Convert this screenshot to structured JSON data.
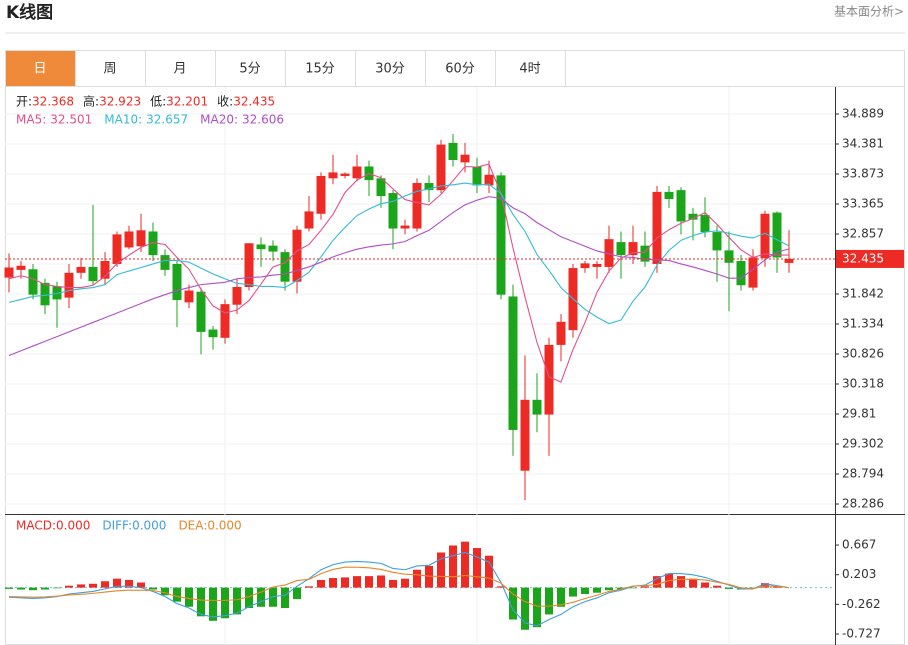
{
  "header": {
    "title": "K线图",
    "link": "基本面分析>"
  },
  "tabs": [
    "日",
    "周",
    "月",
    "5分",
    "15分",
    "30分",
    "60分",
    "4时"
  ],
  "active_tab": 0,
  "chart_data": [
    {
      "type": "candlestick",
      "ylim": [
        28.117,
        35.329
      ],
      "yticks": [
        34.889,
        34.381,
        33.873,
        33.365,
        32.857,
        32.349,
        31.842,
        31.334,
        30.826,
        30.318,
        29.81,
        29.302,
        28.794,
        28.286
      ],
      "grid": true,
      "up_color": "#ee2a24",
      "down_color": "#1ba51b",
      "last_price_color": "#ee2a24",
      "ohlc_labels": [
        "开:",
        "高:",
        "低:",
        "收:"
      ],
      "open": [
        32.12,
        32.25,
        32.26,
        32.03,
        31.97,
        31.78,
        32.2,
        32.3,
        32.1,
        32.35,
        32.63,
        32.65,
        32.9,
        32.5,
        32.35,
        31.7,
        31.88,
        31.24,
        31.1,
        31.66,
        31.96,
        32.68,
        32.66,
        32.55,
        32.05,
        32.95,
        33.2,
        33.8,
        33.84,
        33.8,
        34.0,
        33.8,
        33.55,
        32.95,
        32.95,
        33.72,
        33.6,
        34.4,
        34.07,
        34.0,
        33.68,
        33.85,
        31.8,
        28.85,
        30.05,
        29.8,
        30.98,
        31.23,
        32.28,
        32.3,
        32.3,
        32.72,
        32.5,
        32.66,
        32.35,
        33.57,
        33.6,
        33.2,
        33.18,
        32.89,
        32.58,
        32.4,
        31.95,
        32.45,
        33.22,
        32.368
      ],
      "high": [
        32.53,
        32.4,
        32.35,
        32.1,
        32.05,
        32.35,
        32.45,
        33.35,
        32.55,
        32.9,
        33.0,
        33.2,
        33.05,
        32.6,
        32.4,
        32.0,
        31.95,
        31.3,
        31.75,
        32.1,
        32.7,
        32.8,
        32.75,
        32.6,
        33.0,
        33.5,
        33.9,
        34.2,
        33.9,
        34.2,
        34.1,
        33.85,
        33.6,
        33.1,
        33.8,
        33.85,
        34.45,
        34.55,
        34.4,
        34.15,
        34.1,
        33.9,
        32.0,
        30.8,
        30.5,
        31.1,
        31.5,
        32.35,
        32.4,
        32.4,
        33.0,
        32.9,
        33.0,
        32.9,
        33.67,
        33.67,
        33.65,
        33.3,
        33.48,
        33.0,
        32.9,
        32.5,
        32.6,
        33.25,
        33.24,
        32.923
      ],
      "low": [
        31.87,
        32.1,
        31.75,
        31.5,
        31.27,
        31.6,
        32.1,
        32.0,
        32.0,
        32.3,
        32.6,
        32.55,
        32.4,
        32.15,
        31.28,
        31.6,
        30.82,
        30.9,
        31.0,
        31.5,
        31.9,
        32.3,
        32.4,
        31.9,
        31.85,
        32.9,
        33.1,
        33.7,
        33.8,
        33.75,
        33.5,
        33.3,
        32.6,
        32.85,
        32.9,
        33.4,
        33.55,
        34.0,
        33.9,
        33.55,
        33.55,
        31.75,
        29.1,
        28.35,
        29.5,
        29.1,
        30.7,
        31.1,
        32.2,
        32.1,
        32.2,
        32.1,
        32.35,
        32.3,
        32.2,
        33.3,
        32.85,
        32.75,
        32.8,
        32.05,
        31.55,
        31.9,
        31.9,
        32.3,
        32.2,
        32.201
      ],
      "close": [
        32.29,
        32.32,
        31.83,
        31.65,
        31.75,
        32.2,
        32.3,
        32.06,
        32.4,
        32.85,
        32.9,
        32.92,
        32.5,
        32.25,
        31.74,
        31.9,
        31.2,
        31.11,
        31.67,
        31.96,
        32.7,
        32.6,
        32.56,
        32.05,
        32.93,
        33.24,
        33.84,
        33.9,
        33.88,
        34.0,
        33.77,
        33.5,
        32.95,
        33.0,
        33.72,
        33.6,
        34.37,
        34.11,
        34.2,
        33.68,
        33.86,
        31.83,
        29.54,
        30.05,
        29.8,
        30.98,
        31.37,
        32.28,
        32.36,
        32.35,
        32.77,
        32.5,
        32.72,
        32.39,
        33.57,
        33.45,
        33.07,
        33.1,
        32.89,
        32.58,
        32.37,
        31.99,
        32.46,
        33.2,
        32.46,
        32.435
      ],
      "series": [
        {
          "name": "MA5:",
          "color": "#e4508a",
          "values": [
            32.1,
            32.15,
            32.1,
            32.0,
            31.97,
            31.95,
            31.95,
            31.99,
            32.14,
            32.36,
            32.5,
            32.63,
            32.71,
            32.68,
            32.46,
            32.26,
            31.92,
            31.64,
            31.52,
            31.57,
            31.73,
            32.01,
            32.3,
            32.37,
            32.57,
            32.68,
            32.92,
            33.19,
            33.56,
            33.77,
            33.88,
            33.81,
            33.62,
            33.44,
            33.39,
            33.35,
            33.53,
            33.76,
            34.0,
            33.99,
            34.04,
            33.54,
            32.62,
            31.79,
            31.02,
            30.44,
            30.35,
            30.9,
            31.36,
            31.87,
            32.23,
            32.45,
            32.54,
            32.55,
            32.79,
            32.93,
            33.04,
            33.12,
            33.22,
            33.02,
            32.8,
            32.59,
            32.46,
            32.52,
            32.5,
            32.501
          ]
        },
        {
          "name": "MA10:",
          "color": "#34bcd8",
          "values": [
            31.7,
            31.75,
            31.8,
            31.82,
            31.85,
            31.9,
            31.93,
            31.95,
            32.0,
            32.17,
            32.23,
            32.29,
            32.35,
            32.41,
            32.41,
            32.38,
            32.28,
            32.18,
            32.1,
            32.02,
            32.0,
            31.97,
            31.97,
            31.95,
            32.07,
            32.21,
            32.47,
            32.75,
            32.97,
            33.17,
            33.28,
            33.37,
            33.41,
            33.5,
            33.58,
            33.62,
            33.67,
            33.69,
            33.72,
            33.69,
            33.7,
            33.54,
            33.19,
            32.9,
            32.51,
            32.24,
            31.95,
            31.76,
            31.58,
            31.45,
            31.34,
            31.4,
            31.72,
            31.96,
            32.33,
            32.58,
            32.75,
            32.83,
            32.89,
            32.91,
            32.87,
            32.82,
            32.79,
            32.87,
            32.76,
            32.657
          ]
        },
        {
          "name": "MA20:",
          "color": "#b14ec6",
          "values": [
            30.8,
            30.88,
            30.96,
            31.04,
            31.12,
            31.2,
            31.28,
            31.36,
            31.44,
            31.52,
            31.6,
            31.68,
            31.76,
            31.83,
            31.9,
            31.95,
            32.0,
            32.02,
            32.04,
            32.1,
            32.12,
            32.13,
            32.16,
            32.18,
            32.24,
            32.3,
            32.38,
            32.47,
            32.54,
            32.6,
            32.64,
            32.67,
            32.69,
            32.73,
            32.83,
            32.92,
            33.07,
            33.22,
            33.35,
            33.43,
            33.49,
            33.46,
            33.3,
            33.2,
            33.05,
            32.93,
            32.81,
            32.73,
            32.65,
            32.57,
            32.52,
            32.47,
            32.46,
            32.43,
            32.42,
            32.41,
            32.35,
            32.3,
            32.24,
            32.18,
            32.11,
            32.11,
            32.26,
            32.42,
            32.55,
            32.606
          ]
        }
      ]
    },
    {
      "type": "macd",
      "ylim": [
        -0.899,
        1.122
      ],
      "yticks": [
        0.667,
        0.203,
        -0.262,
        -0.727
      ],
      "up_color": "#ee2a24",
      "down_color": "#1ba51b",
      "bars": {
        "name": "MACD:",
        "color": "#ee2a24",
        "current_label": "0.000",
        "values": [
          -0.02,
          -0.03,
          -0.04,
          -0.03,
          -0.01,
          0.03,
          0.05,
          0.06,
          0.1,
          0.14,
          0.12,
          0.08,
          -0.03,
          -0.12,
          -0.22,
          -0.3,
          -0.45,
          -0.52,
          -0.48,
          -0.42,
          -0.32,
          -0.3,
          -0.3,
          -0.32,
          -0.18,
          0.02,
          0.12,
          0.15,
          0.16,
          0.18,
          0.18,
          0.19,
          0.12,
          0.14,
          0.28,
          0.34,
          0.55,
          0.66,
          0.72,
          0.62,
          0.5,
          0.02,
          -0.5,
          -0.66,
          -0.62,
          -0.42,
          -0.3,
          -0.14,
          -0.1,
          -0.08,
          -0.04,
          -0.03,
          -0.01,
          0.02,
          0.18,
          0.22,
          0.18,
          0.14,
          0.08,
          0.03,
          -0.02,
          -0.03,
          -0.01,
          0.07,
          0.02,
          0
        ]
      },
      "series": [
        {
          "name": "DIFF:",
          "color": "#3f9fe0",
          "current_label": "0.000",
          "values": [
            -0.15,
            -0.16,
            -0.17,
            -0.16,
            -0.14,
            -0.1,
            -0.08,
            -0.06,
            -0.02,
            0.02,
            0.02,
            0,
            -0.06,
            -0.14,
            -0.25,
            -0.32,
            -0.42,
            -0.46,
            -0.44,
            -0.4,
            -0.3,
            -0.22,
            -0.14,
            -0.12,
            0.02,
            0.14,
            0.28,
            0.36,
            0.4,
            0.41,
            0.4,
            0.38,
            0.3,
            0.28,
            0.34,
            0.35,
            0.45,
            0.5,
            0.55,
            0.48,
            0.4,
            0.08,
            -0.35,
            -0.55,
            -0.6,
            -0.5,
            -0.42,
            -0.3,
            -0.22,
            -0.16,
            -0.08,
            -0.04,
            0.02,
            0.04,
            0.14,
            0.22,
            0.22,
            0.2,
            0.16,
            0.1,
            0.04,
            -0.02,
            -0.02,
            0.06,
            0.03,
            0
          ]
        },
        {
          "name": "DEA:",
          "color": "#e8862a",
          "current_label": "0.000",
          "values": [
            -0.14,
            -0.145,
            -0.15,
            -0.145,
            -0.135,
            -0.115,
            -0.105,
            -0.09,
            -0.07,
            -0.05,
            -0.04,
            -0.04,
            -0.045,
            -0.08,
            -0.14,
            -0.17,
            -0.195,
            -0.2,
            -0.2,
            -0.19,
            -0.14,
            -0.07,
            0.01,
            0.04,
            0.11,
            0.13,
            0.22,
            0.285,
            0.32,
            0.32,
            0.31,
            0.285,
            0.24,
            0.21,
            0.2,
            0.18,
            0.175,
            0.17,
            0.19,
            0.17,
            0.15,
            0.07,
            -0.1,
            -0.22,
            -0.29,
            -0.29,
            -0.27,
            -0.23,
            -0.17,
            -0.12,
            -0.06,
            -0.025,
            0.025,
            0.03,
            0.05,
            0.11,
            0.13,
            0.13,
            0.12,
            0.085,
            0.05,
            -0.005,
            -0.015,
            0.025,
            0.02,
            0
          ]
        }
      ]
    }
  ]
}
